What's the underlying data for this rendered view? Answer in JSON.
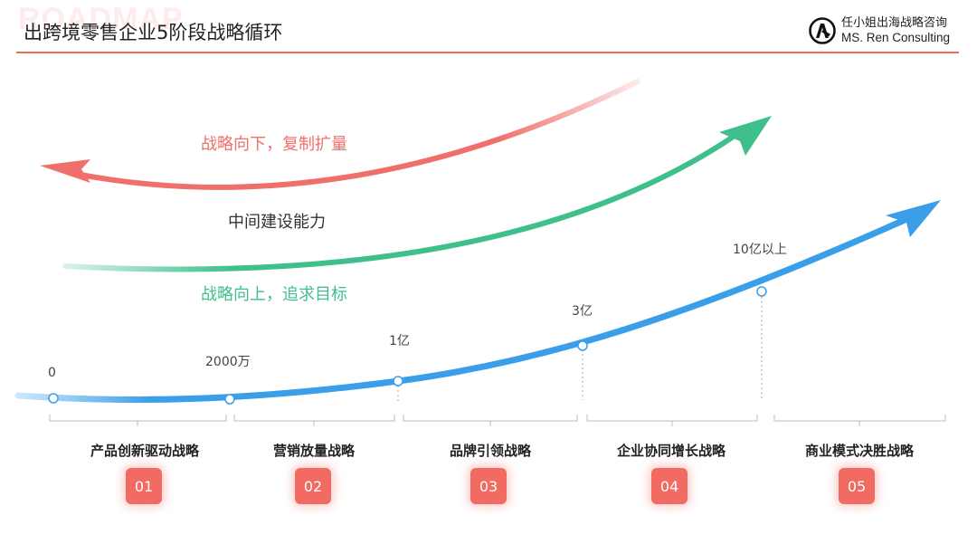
{
  "watermark": "ROADMAP",
  "header": {
    "title": "出跨境零售企业5阶段战略循环",
    "brand_cn": "任小姐出海战略咨询",
    "brand_en": "MS. Ren Consulting"
  },
  "arrows": {
    "red_label": "战略向下，复制扩量",
    "middle_label": "中间建设能力",
    "green_label": "战略向上，追求目标"
  },
  "milestones": [
    "0",
    "2000万",
    "1亿",
    "3亿",
    "10亿以上"
  ],
  "stages": [
    {
      "name": "产品创新驱动战略",
      "num": "01"
    },
    {
      "name": "营销放量战略",
      "num": "02"
    },
    {
      "name": "品牌引领战略",
      "num": "03"
    },
    {
      "name": "企业协同增长战略",
      "num": "04"
    },
    {
      "name": "商业模式决胜战略",
      "num": "05"
    }
  ],
  "colors": {
    "accent": "#f06a5a",
    "red_arrow": "#ef6f6a",
    "green_arrow": "#3fbf8c",
    "blue_arrow": "#3a9fe8",
    "badge": "#f26b62"
  },
  "icons": [
    "brand-logo-icon"
  ]
}
